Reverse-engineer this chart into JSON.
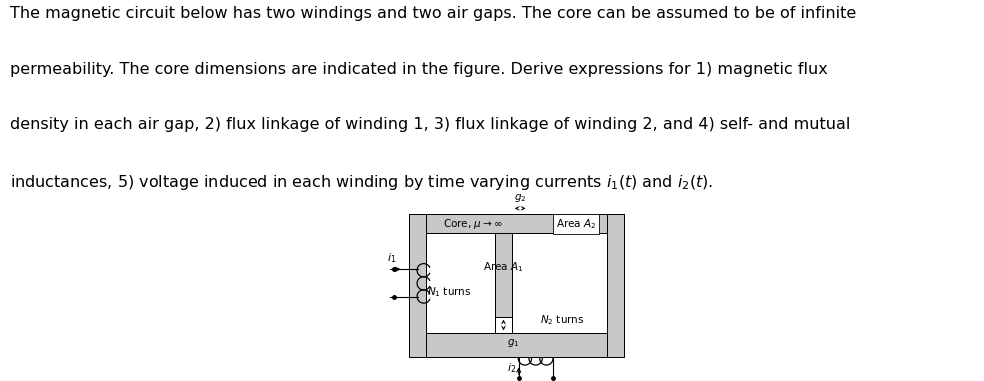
{
  "fig_width": 9.84,
  "fig_height": 3.81,
  "dpi": 100,
  "bg_color": "#ffffff",
  "text_color": "#000000",
  "core_color": "#c8c8c8",
  "line1": "The magnetic circuit below has two windings and two air gaps. The core can be assumed to be of infinite",
  "line2": "permeability. The core dimensions are indicated in the figure. Derive expressions for 1) magnetic flux",
  "line3": "density in each air gap, 2) flux linkage of winding 1, 3) flux linkage of winding 2, and 4) self- and mutual",
  "line4": "inductances, 5) voltage induced in each winding by time varying currents $i_1(t)$ and $i_2(t)$.",
  "label_core": "Core, $\\mu \\rightarrow \\infty$",
  "label_area1": "Area $A_1$",
  "label_area2": "Area $A_2$",
  "label_N1": "$N_1$ turns",
  "label_N2": "$N_2$ turns",
  "label_g1": "$g_1$",
  "label_g2": "$g_2$",
  "label_i1": "$i_1$",
  "label_i2": "$i_2$",
  "core_gray": "#c8c8c8",
  "area2_box_gray": "#d8d8d8"
}
